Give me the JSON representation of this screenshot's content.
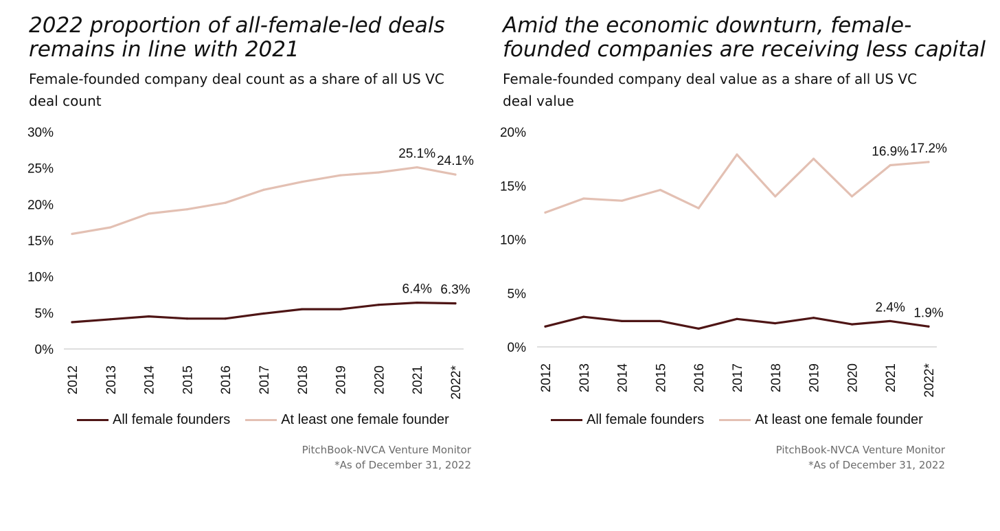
{
  "colors": {
    "all_female": "#4e1515",
    "at_least_one": "#e3c0b3",
    "axis": "#bdbdbd"
  },
  "chart_data": [
    {
      "type": "line",
      "title_lines": [
        "2022 proportion of all-female-led deals",
        "remains in line with 2021"
      ],
      "subtitle_lines": [
        "Female-founded company deal count as a share of all US VC",
        "deal count"
      ],
      "categories": [
        "2012",
        "2013",
        "2014",
        "2015",
        "2016",
        "2017",
        "2018",
        "2019",
        "2020",
        "2021",
        "2022*"
      ],
      "ylim": [
        0,
        30
      ],
      "yticks": [
        "0%",
        "5%",
        "10%",
        "15%",
        "20%",
        "25%",
        "30%"
      ],
      "series": [
        {
          "name": "All female founders",
          "values": [
            3.7,
            4.1,
            4.5,
            4.2,
            4.2,
            4.9,
            5.5,
            5.5,
            6.1,
            6.4,
            6.3
          ],
          "labels": {
            "9": "6.4%",
            "10": "6.3%"
          }
        },
        {
          "name": "At least one female founder",
          "values": [
            15.9,
            16.8,
            18.7,
            19.3,
            20.2,
            22.0,
            23.1,
            24.0,
            24.4,
            25.1,
            24.1
          ],
          "labels": {
            "9": "25.1%",
            "10": "24.1%"
          }
        }
      ],
      "legend": "bottom",
      "source_lines": [
        "PitchBook-NVCA Venture Monitor",
        "*As of December 31, 2022"
      ]
    },
    {
      "type": "line",
      "title_lines": [
        "Amid the economic downturn, female-",
        "founded companies are receiving less capital"
      ],
      "subtitle_lines": [
        "Female-founded company deal value as a share of all US VC",
        "deal value"
      ],
      "categories": [
        "2012",
        "2013",
        "2014",
        "2015",
        "2016",
        "2017",
        "2018",
        "2019",
        "2020",
        "2021",
        "2022*"
      ],
      "ylim": [
        0,
        20
      ],
      "yticks": [
        "0%",
        "5%",
        "10%",
        "15%",
        "20%"
      ],
      "series": [
        {
          "name": "All female founders",
          "values": [
            1.9,
            2.8,
            2.4,
            2.4,
            1.7,
            2.6,
            2.2,
            2.7,
            2.1,
            2.4,
            1.9
          ],
          "labels": {
            "9": "2.4%",
            "10": "1.9%"
          }
        },
        {
          "name": "At least one female founder",
          "values": [
            12.5,
            13.8,
            13.6,
            14.6,
            12.9,
            17.9,
            14.0,
            17.5,
            14.0,
            16.9,
            17.2
          ],
          "labels": {
            "9": "16.9%",
            "10": "17.2%"
          }
        }
      ],
      "legend": "bottom",
      "source_lines": [
        "PitchBook-NVCA Venture Monitor",
        "*As of December 31, 2022"
      ]
    }
  ]
}
